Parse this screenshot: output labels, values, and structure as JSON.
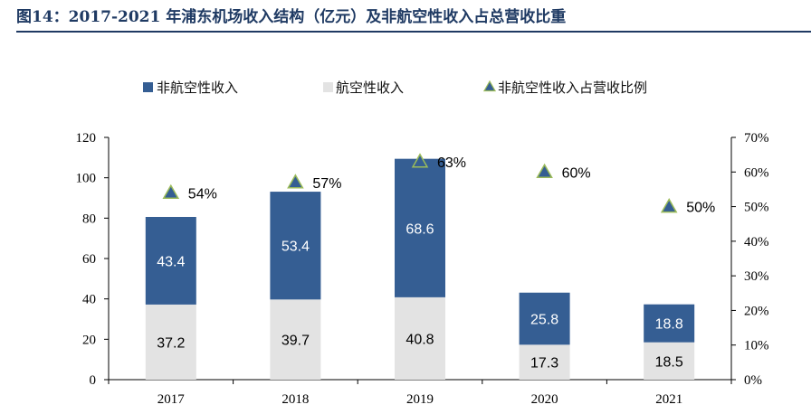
{
  "header": {
    "title": "图14：2017-2021 年浦东机场收入结构（亿元）及非航空性收入占总营收比重"
  },
  "chart_data": {
    "type": "bar",
    "stacked": true,
    "categories": [
      "2017",
      "2018",
      "2019",
      "2020",
      "2021"
    ],
    "series": [
      {
        "name": "航空性收入",
        "values": [
          37.2,
          39.7,
          40.8,
          17.3,
          18.5
        ],
        "color": "#E3E3E3",
        "label_color": "#000000"
      },
      {
        "name": "非航空性收入",
        "values": [
          43.4,
          53.4,
          68.6,
          25.8,
          18.8
        ],
        "color": "#355E93",
        "label_color": "#FFFFFF"
      }
    ],
    "secondary_series": {
      "name": "非航空性收入占营收比例",
      "type": "scatter",
      "marker": "triangle",
      "values": [
        54,
        57,
        63,
        60,
        50
      ],
      "labels": [
        "54%",
        "57%",
        "63%",
        "60%",
        "50%"
      ],
      "color": "#355E93",
      "edge_color": "#9BBB59"
    },
    "legend": {
      "position": "top",
      "items": [
        "非航空性收入",
        "航空性收入",
        "非航空性收入占营收比例"
      ]
    },
    "y_axis": {
      "ylim": [
        0,
        120
      ],
      "ticks": [
        "0",
        "20",
        "40",
        "60",
        "80",
        "100",
        "120"
      ]
    },
    "y2_axis": {
      "ylim": [
        0,
        70
      ],
      "ticks": [
        "0%",
        "10%",
        "20%",
        "30%",
        "40%",
        "50%",
        "60%",
        "70%"
      ]
    },
    "xlabel": "",
    "ylabel": "",
    "grid": false
  }
}
